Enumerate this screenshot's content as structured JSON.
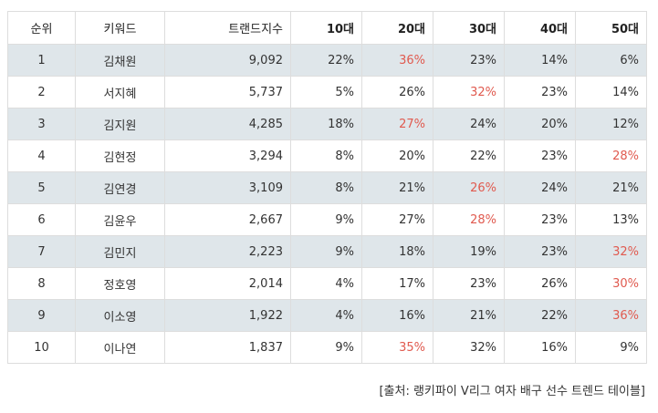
{
  "table": {
    "headers": [
      "순위",
      "키워드",
      "트랜드지수",
      "10대",
      "20대",
      "30대",
      "40대",
      "50대"
    ],
    "rows": [
      {
        "rank": "1",
        "keyword": "김채원",
        "index": "9,092",
        "ages": [
          "22%",
          "36%",
          "23%",
          "14%",
          "6%"
        ],
        "highlight": 1
      },
      {
        "rank": "2",
        "keyword": "서지혜",
        "index": "5,737",
        "ages": [
          "5%",
          "26%",
          "32%",
          "23%",
          "14%"
        ],
        "highlight": 2
      },
      {
        "rank": "3",
        "keyword": "김지원",
        "index": "4,285",
        "ages": [
          "18%",
          "27%",
          "24%",
          "20%",
          "12%"
        ],
        "highlight": 1
      },
      {
        "rank": "4",
        "keyword": "김현정",
        "index": "3,294",
        "ages": [
          "8%",
          "20%",
          "22%",
          "23%",
          "28%"
        ],
        "highlight": 4
      },
      {
        "rank": "5",
        "keyword": "김연경",
        "index": "3,109",
        "ages": [
          "8%",
          "21%",
          "26%",
          "24%",
          "21%"
        ],
        "highlight": 2
      },
      {
        "rank": "6",
        "keyword": "김윤우",
        "index": "2,667",
        "ages": [
          "9%",
          "27%",
          "28%",
          "23%",
          "13%"
        ],
        "highlight": 2
      },
      {
        "rank": "7",
        "keyword": "김민지",
        "index": "2,223",
        "ages": [
          "9%",
          "18%",
          "19%",
          "23%",
          "32%"
        ],
        "highlight": 4
      },
      {
        "rank": "8",
        "keyword": "정호영",
        "index": "2,014",
        "ages": [
          "4%",
          "17%",
          "23%",
          "26%",
          "30%"
        ],
        "highlight": 4
      },
      {
        "rank": "9",
        "keyword": "이소영",
        "index": "1,922",
        "ages": [
          "4%",
          "16%",
          "21%",
          "22%",
          "36%"
        ],
        "highlight": 4
      },
      {
        "rank": "10",
        "keyword": "이나연",
        "index": "1,837",
        "ages": [
          "9%",
          "35%",
          "32%",
          "16%",
          "9%"
        ],
        "highlight": 1
      }
    ]
  },
  "caption": "[출처: 랭키파이 V리그 여자 배구 선수 트렌드 테이블]",
  "colors": {
    "highlight": "#e05a4f",
    "row_shade": "#dfe6ea",
    "border": "#dddddd"
  }
}
